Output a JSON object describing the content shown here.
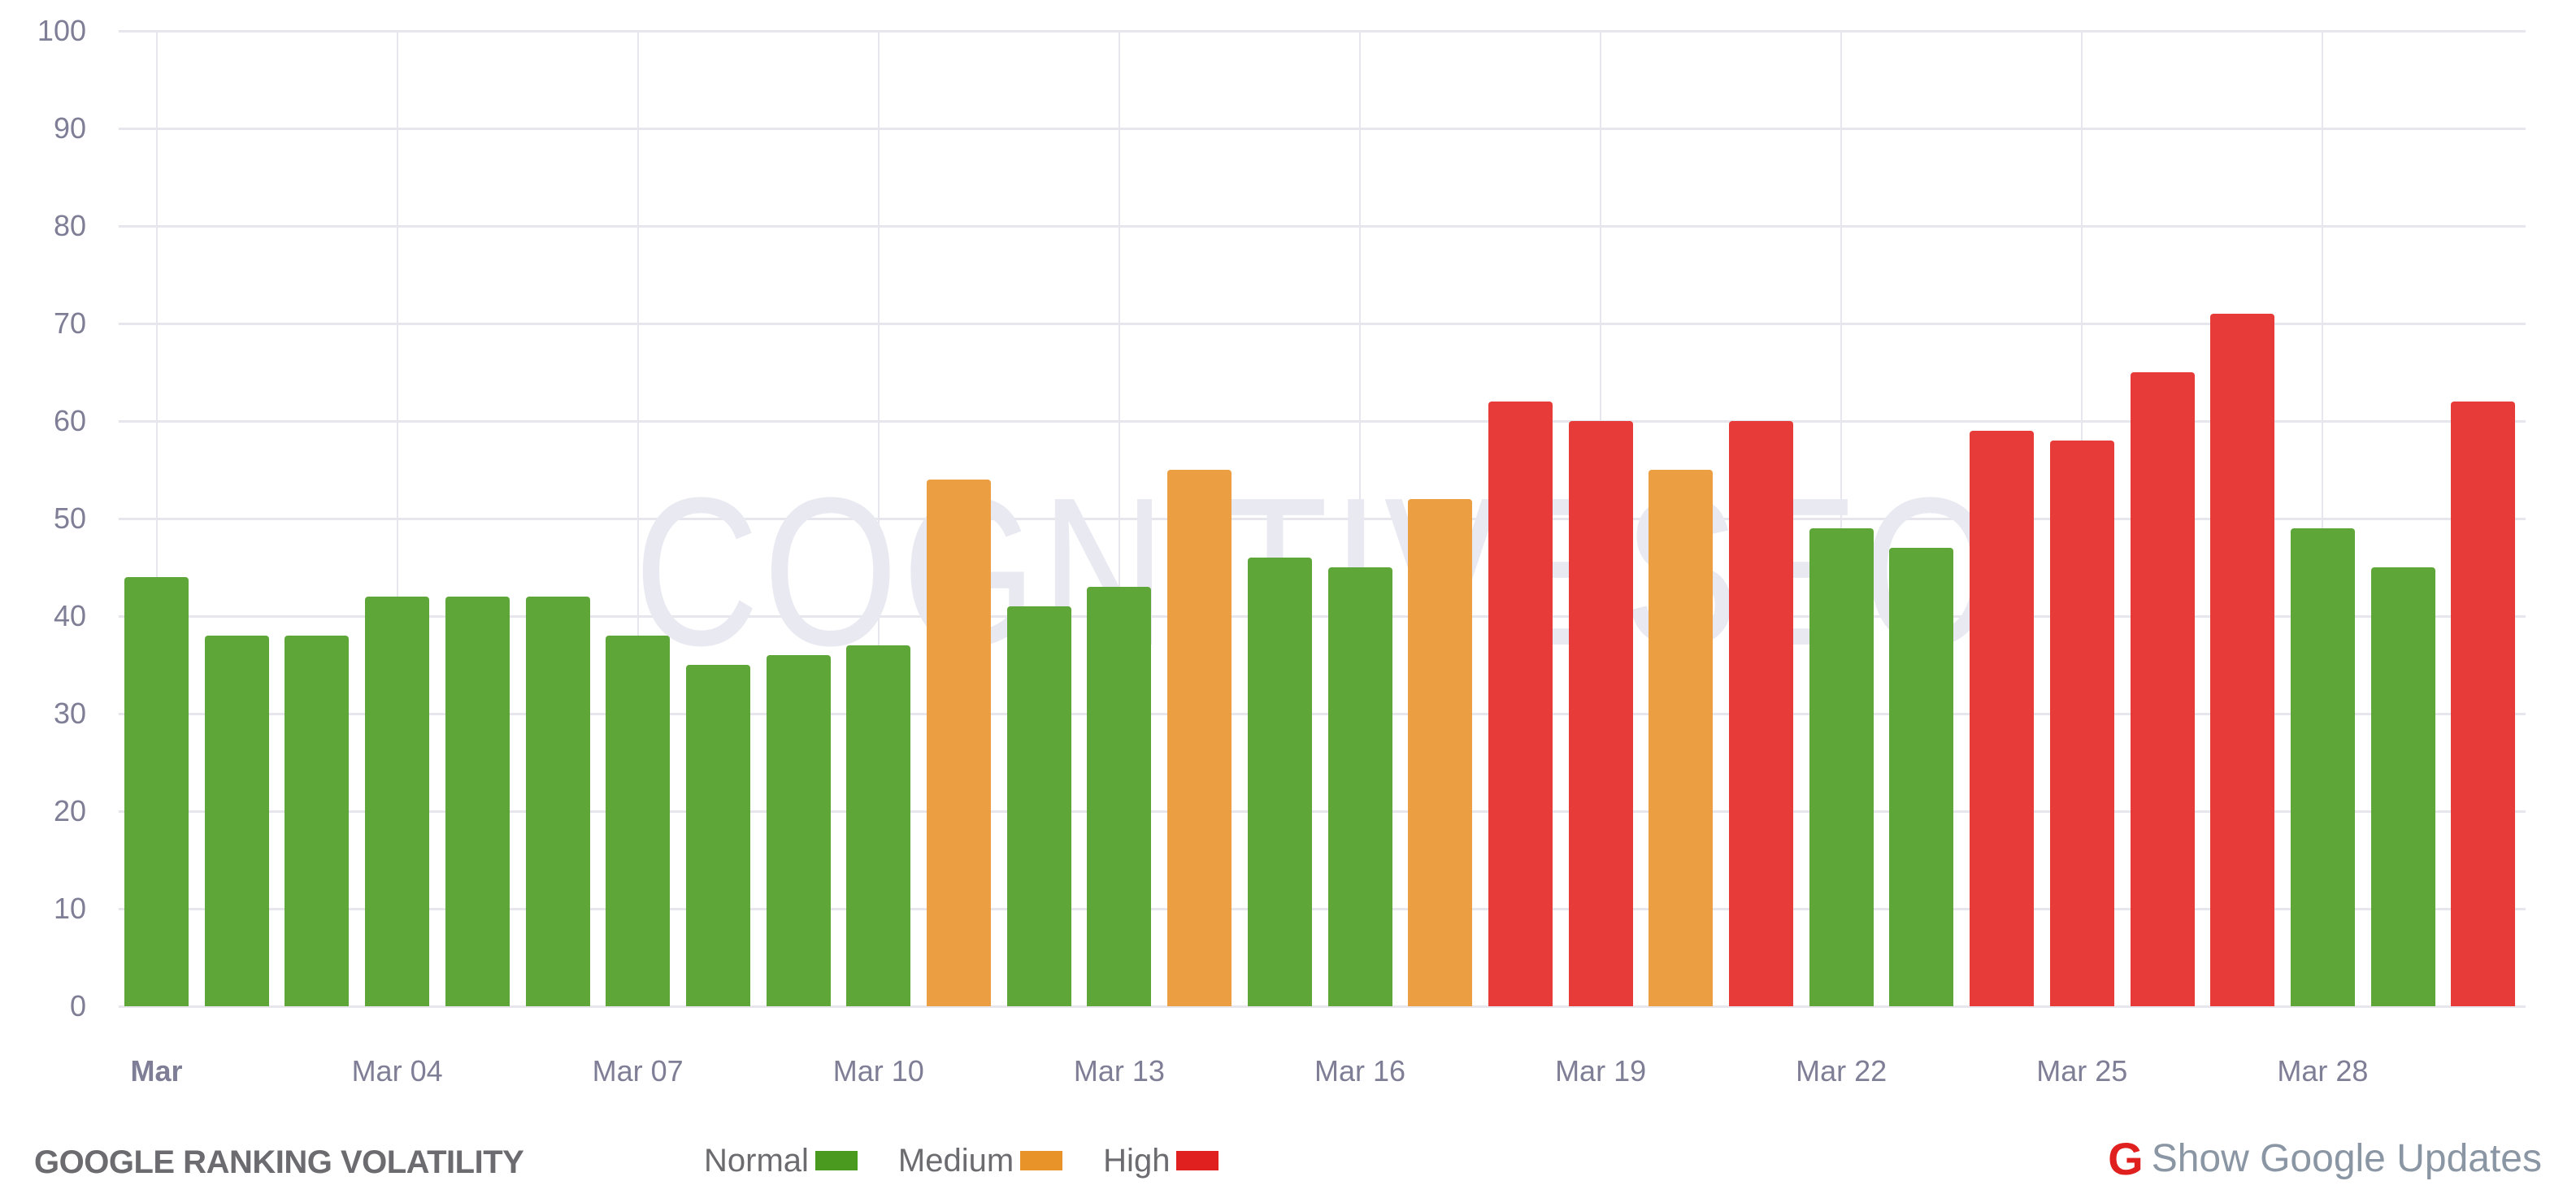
{
  "footer": {
    "title": "GOOGLE RANKING VOLATILITY",
    "legend": [
      {
        "label": "Normal",
        "color": "#4a9a1f"
      },
      {
        "label": "Medium",
        "color": "#e8922a"
      },
      {
        "label": "High",
        "color": "#e0201e"
      }
    ],
    "google_updates": {
      "icon": "google-g-icon",
      "label": "Show Google Updates"
    }
  },
  "watermark": "COGNITIVESEO",
  "colors": {
    "Normal": "#5aa332",
    "Medium": "#eb9c3c",
    "High": "#e53532",
    "grid": "#e6e6ec",
    "axis_text": "#7e7e96"
  },
  "chart_data": {
    "type": "bar",
    "title": "GOOGLE RANKING VOLATILITY",
    "xlabel": "",
    "ylabel": "",
    "ylim": [
      0,
      100
    ],
    "yticks": [
      0,
      10,
      20,
      30,
      40,
      50,
      60,
      70,
      80,
      90,
      100
    ],
    "grid": true,
    "legend_position": "bottom",
    "x_tick_labels": [
      {
        "index": 0,
        "label": "Mar",
        "bold": true
      },
      {
        "index": 3,
        "label": "Mar 04"
      },
      {
        "index": 6,
        "label": "Mar 07"
      },
      {
        "index": 9,
        "label": "Mar 10"
      },
      {
        "index": 12,
        "label": "Mar 13"
      },
      {
        "index": 15,
        "label": "Mar 16"
      },
      {
        "index": 18,
        "label": "Mar 19"
      },
      {
        "index": 21,
        "label": "Mar 22"
      },
      {
        "index": 24,
        "label": "Mar 25"
      },
      {
        "index": 27,
        "label": "Mar 28"
      }
    ],
    "categories": [
      "Mar 01",
      "Mar 02",
      "Mar 03",
      "Mar 04",
      "Mar 05",
      "Mar 06",
      "Mar 07",
      "Mar 08",
      "Mar 09",
      "Mar 10",
      "Mar 11",
      "Mar 12",
      "Mar 13",
      "Mar 14",
      "Mar 15",
      "Mar 16",
      "Mar 17",
      "Mar 18",
      "Mar 19",
      "Mar 20",
      "Mar 21",
      "Mar 22",
      "Mar 23",
      "Mar 24",
      "Mar 25",
      "Mar 26",
      "Mar 27",
      "Mar 28",
      "Mar 29",
      "Mar 30"
    ],
    "values": [
      44,
      38,
      38,
      42,
      42,
      42,
      38,
      35,
      36,
      37,
      54,
      41,
      43,
      55,
      46,
      45,
      52,
      62,
      60,
      55,
      60,
      49,
      47,
      59,
      58,
      65,
      71,
      49,
      45,
      62
    ],
    "levels": [
      "Normal",
      "Normal",
      "Normal",
      "Normal",
      "Normal",
      "Normal",
      "Normal",
      "Normal",
      "Normal",
      "Normal",
      "Medium",
      "Normal",
      "Normal",
      "Medium",
      "Normal",
      "Normal",
      "Medium",
      "High",
      "High",
      "Medium",
      "High",
      "Normal",
      "Normal",
      "High",
      "High",
      "High",
      "High",
      "Normal",
      "Normal",
      "High"
    ],
    "legend": [
      "Normal",
      "Medium",
      "High"
    ]
  }
}
